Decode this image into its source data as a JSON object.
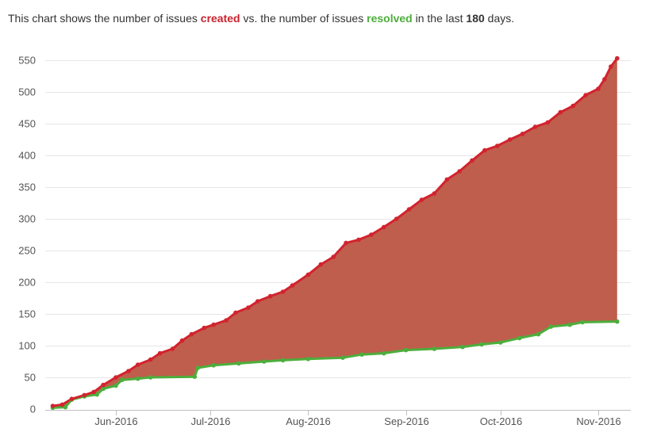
{
  "header": {
    "prefix": "This chart shows the number of issues ",
    "created_word": "created",
    "middle": " vs. the number of issues ",
    "resolved_word": "resolved",
    "suffix_before_days": " in the last ",
    "days": "180",
    "suffix": " days."
  },
  "colors": {
    "created": "#d2232e",
    "resolved": "#4cae3c",
    "fill": "#bf5e4c",
    "grid": "#e6e6e6"
  },
  "chart_data": {
    "type": "line",
    "title": "",
    "xlabel": "",
    "ylabel": "",
    "ylim": [
      0,
      555
    ],
    "yticks": [
      0,
      50,
      100,
      150,
      200,
      250,
      300,
      350,
      400,
      450,
      500,
      550
    ],
    "xticks": [
      {
        "label": "Jun-2016",
        "date": "2016-06-01"
      },
      {
        "label": "Jul-2016",
        "date": "2016-07-01"
      },
      {
        "label": "Aug-2016",
        "date": "2016-08-01"
      },
      {
        "label": "Sep-2016",
        "date": "2016-09-01"
      },
      {
        "label": "Oct-2016",
        "date": "2016-10-01"
      },
      {
        "label": "Nov-2016",
        "date": "2016-11-01"
      }
    ],
    "xlim": [
      "2016-05-10",
      "2016-11-09"
    ],
    "series": [
      {
        "name": "created",
        "points": [
          [
            "2016-05-12",
            5
          ],
          [
            "2016-05-15",
            7
          ],
          [
            "2016-05-18",
            16
          ],
          [
            "2016-05-22",
            22
          ],
          [
            "2016-05-25",
            27
          ],
          [
            "2016-05-28",
            38
          ],
          [
            "2016-06-01",
            50
          ],
          [
            "2016-06-05",
            60
          ],
          [
            "2016-06-08",
            70
          ],
          [
            "2016-06-12",
            78
          ],
          [
            "2016-06-15",
            88
          ],
          [
            "2016-06-19",
            95
          ],
          [
            "2016-06-22",
            108
          ],
          [
            "2016-06-25",
            118
          ],
          [
            "2016-06-29",
            128
          ],
          [
            "2016-07-02",
            133
          ],
          [
            "2016-07-06",
            140
          ],
          [
            "2016-07-09",
            152
          ],
          [
            "2016-07-13",
            160
          ],
          [
            "2016-07-16",
            170
          ],
          [
            "2016-07-20",
            178
          ],
          [
            "2016-07-24",
            185
          ],
          [
            "2016-07-27",
            195
          ],
          [
            "2016-08-01",
            212
          ],
          [
            "2016-08-05",
            228
          ],
          [
            "2016-08-09",
            240
          ],
          [
            "2016-08-13",
            262
          ],
          [
            "2016-08-17",
            267
          ],
          [
            "2016-08-21",
            275
          ],
          [
            "2016-08-25",
            287
          ],
          [
            "2016-08-29",
            300
          ],
          [
            "2016-09-02",
            315
          ],
          [
            "2016-09-06",
            330
          ],
          [
            "2016-09-10",
            340
          ],
          [
            "2016-09-14",
            362
          ],
          [
            "2016-09-18",
            375
          ],
          [
            "2016-09-22",
            392
          ],
          [
            "2016-09-26",
            408
          ],
          [
            "2016-09-30",
            415
          ],
          [
            "2016-10-04",
            425
          ],
          [
            "2016-10-08",
            434
          ],
          [
            "2016-10-12",
            445
          ],
          [
            "2016-10-16",
            452
          ],
          [
            "2016-10-20",
            468
          ],
          [
            "2016-10-24",
            478
          ],
          [
            "2016-10-28",
            495
          ],
          [
            "2016-11-01",
            505
          ],
          [
            "2016-11-03",
            520
          ],
          [
            "2016-11-05",
            540
          ],
          [
            "2016-11-07",
            553
          ]
        ]
      },
      {
        "name": "resolved",
        "points": [
          [
            "2016-05-12",
            2
          ],
          [
            "2016-05-16",
            3
          ],
          [
            "2016-05-18",
            15
          ],
          [
            "2016-05-22",
            20
          ],
          [
            "2016-05-26",
            23
          ],
          [
            "2016-05-28",
            32
          ],
          [
            "2016-06-01",
            37
          ],
          [
            "2016-06-03",
            46
          ],
          [
            "2016-06-08",
            48
          ],
          [
            "2016-06-12",
            50
          ],
          [
            "2016-06-26",
            51
          ],
          [
            "2016-06-27",
            65
          ],
          [
            "2016-07-02",
            69
          ],
          [
            "2016-07-10",
            72
          ],
          [
            "2016-07-18",
            75
          ],
          [
            "2016-07-24",
            77
          ],
          [
            "2016-08-01",
            79
          ],
          [
            "2016-08-12",
            81
          ],
          [
            "2016-08-18",
            86
          ],
          [
            "2016-08-25",
            88
          ],
          [
            "2016-09-01",
            93
          ],
          [
            "2016-09-10",
            95
          ],
          [
            "2016-09-19",
            98
          ],
          [
            "2016-09-25",
            102
          ],
          [
            "2016-10-01",
            105
          ],
          [
            "2016-10-07",
            112
          ],
          [
            "2016-10-13",
            118
          ],
          [
            "2016-10-17",
            130
          ],
          [
            "2016-10-23",
            133
          ],
          [
            "2016-10-27",
            137
          ],
          [
            "2016-11-07",
            138
          ]
        ]
      }
    ],
    "grid": true,
    "legend": "none"
  }
}
